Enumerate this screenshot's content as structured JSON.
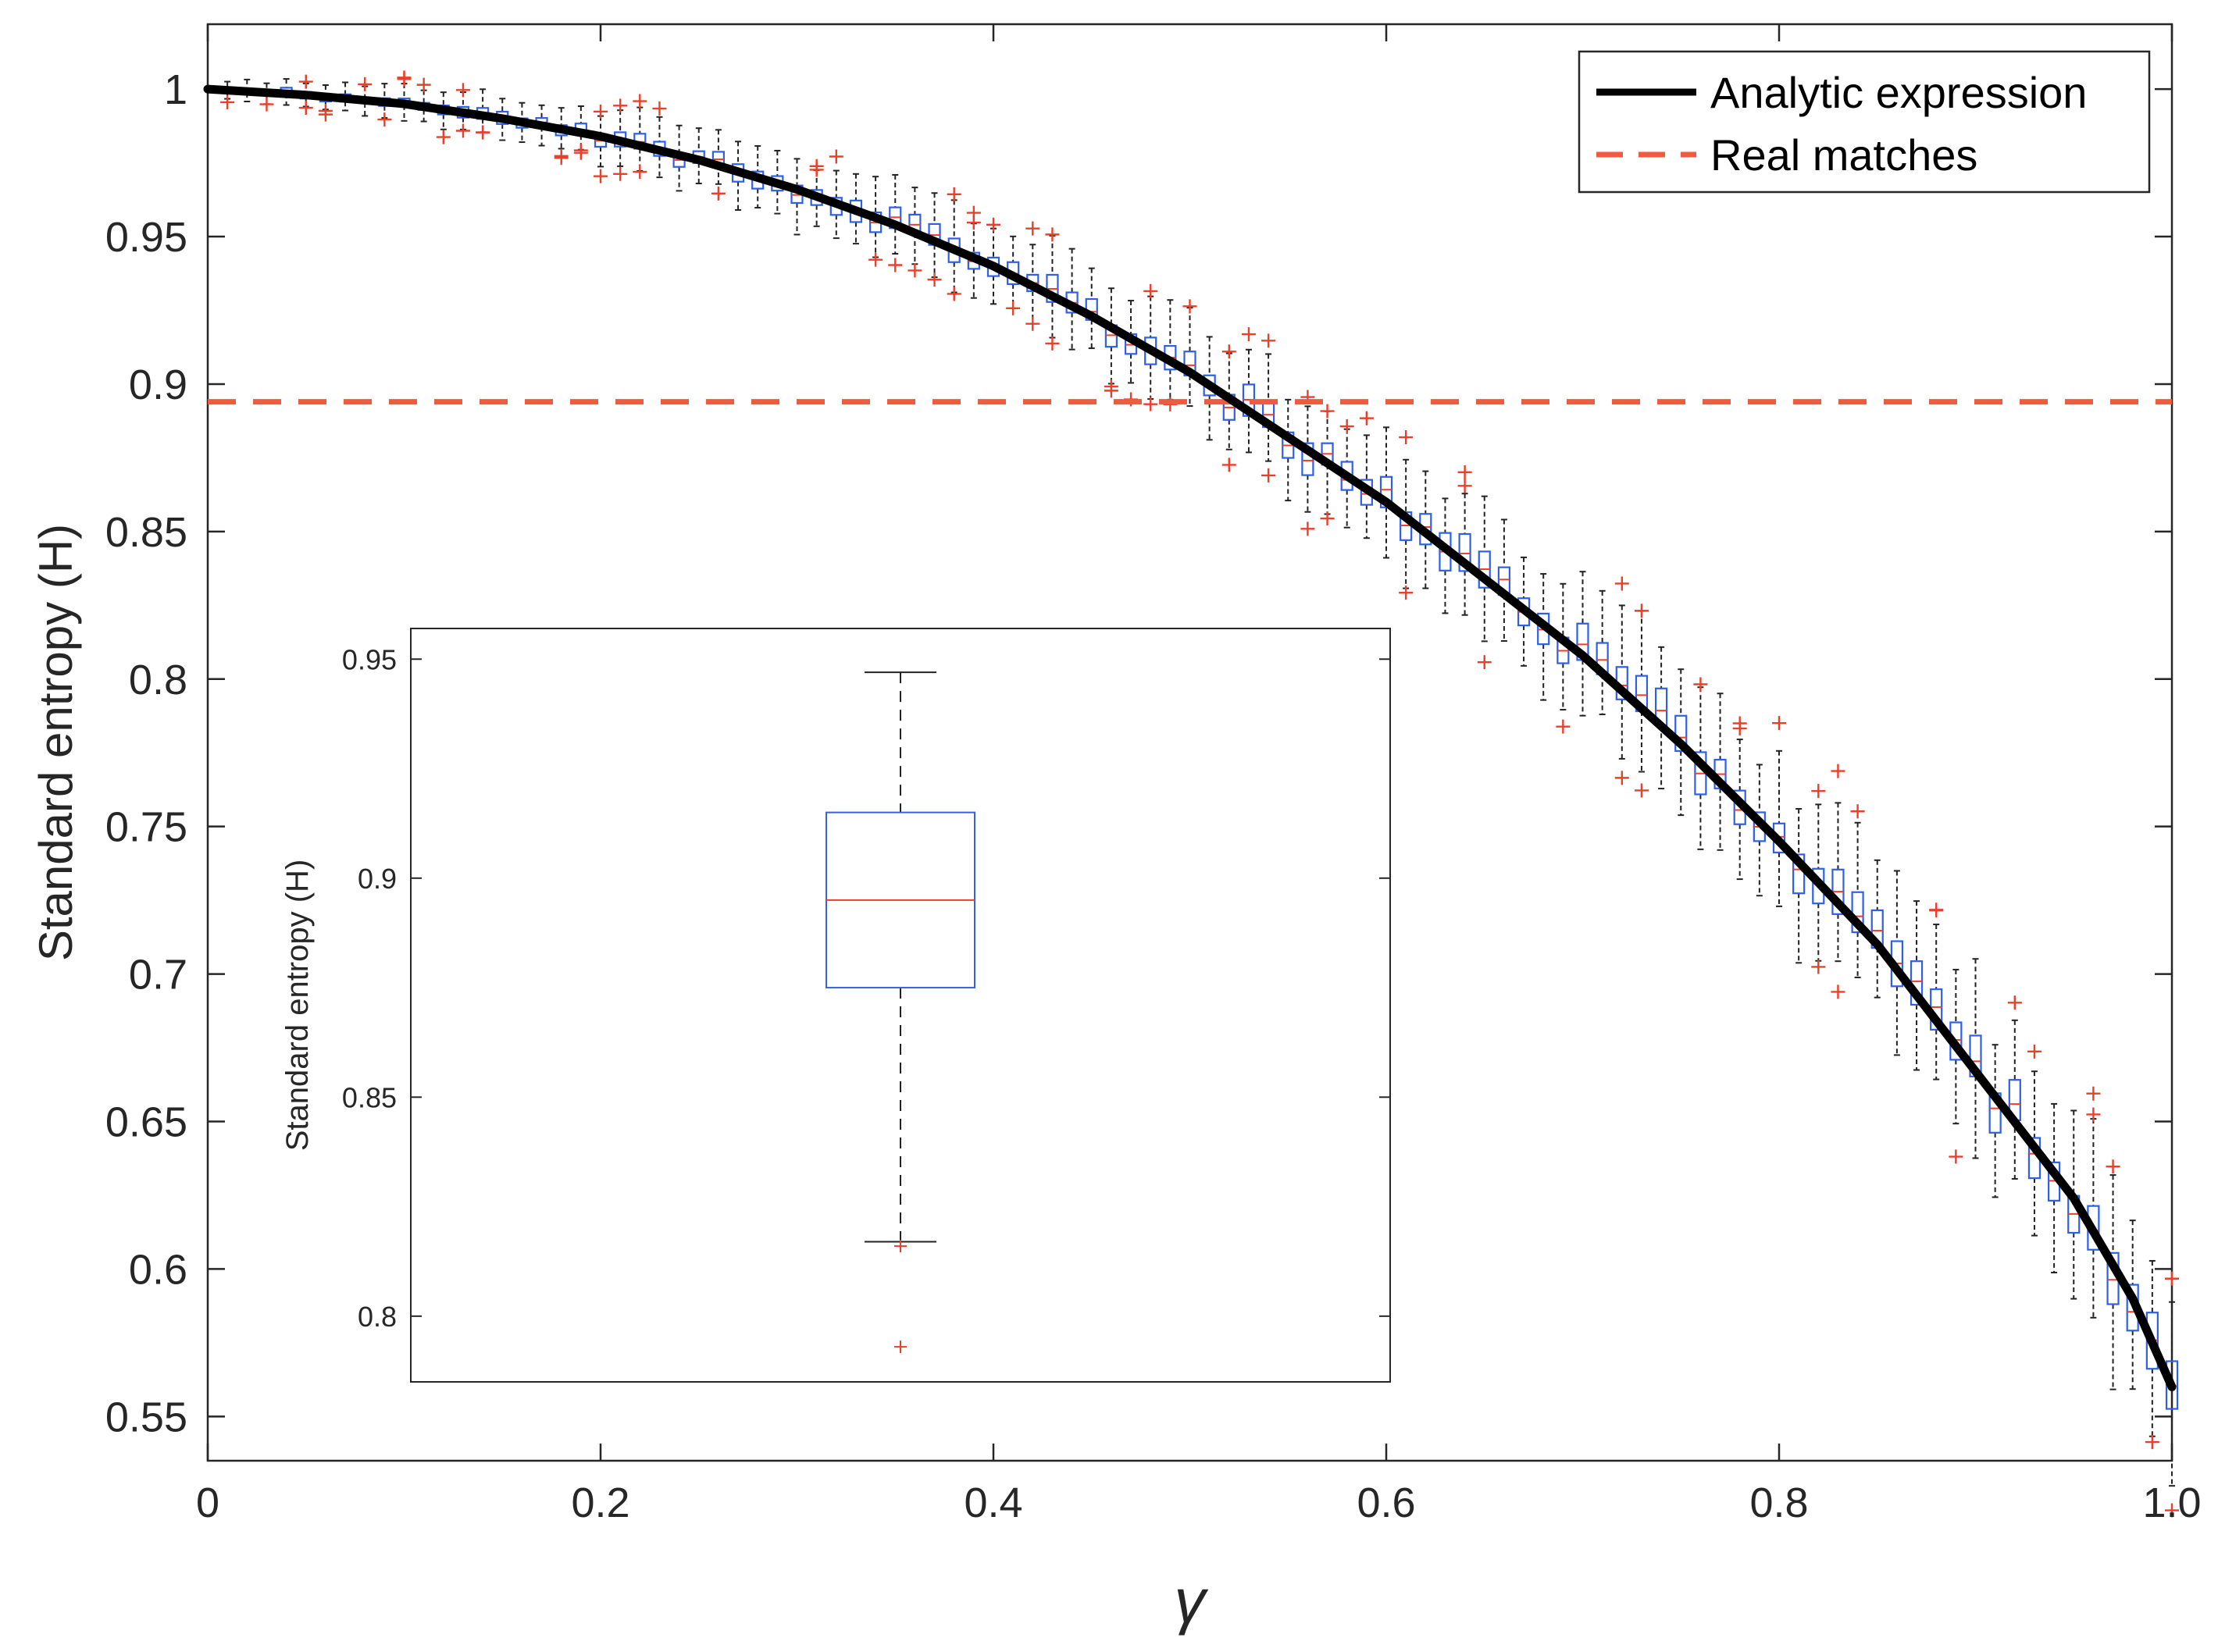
{
  "chart_data": [
    {
      "type": "line",
      "title": "",
      "xlabel": "γ",
      "ylabel": "Standard entropy (H)",
      "xlim": [
        0,
        1.0
      ],
      "ylim": [
        0.535,
        1.022
      ],
      "x_ticks": [
        0,
        0.2,
        0.4,
        0.6,
        0.8,
        1.0
      ],
      "x_tick_labels": [
        "0",
        "0.2",
        "0.4",
        "0.6",
        "0.8",
        "1.0"
      ],
      "y_ticks": [
        0.55,
        0.6,
        0.65,
        0.7,
        0.75,
        0.8,
        0.85,
        0.9,
        0.95,
        1
      ],
      "y_tick_labels": [
        "0.55",
        "0.6",
        "0.65",
        "0.7",
        "0.75",
        "0.8",
        "0.85",
        "0.9",
        "0.95",
        "1"
      ],
      "grid": false,
      "legend_position": "top-right",
      "series": [
        {
          "name": "Analytic expression",
          "style": "solid",
          "color": "#000000",
          "x": [
            0,
            0.05,
            0.1,
            0.15,
            0.2,
            0.25,
            0.3,
            0.35,
            0.4,
            0.45,
            0.5,
            0.55,
            0.6,
            0.65,
            0.7,
            0.75,
            0.8,
            0.85,
            0.9,
            0.95,
            0.98,
            1.0
          ],
          "y": [
            1.0,
            0.998,
            0.995,
            0.99,
            0.984,
            0.976,
            0.966,
            0.954,
            0.94,
            0.923,
            0.904,
            0.882,
            0.86,
            0.834,
            0.808,
            0.778,
            0.745,
            0.71,
            0.667,
            0.624,
            0.59,
            0.56
          ]
        },
        {
          "name": "Real matches",
          "style": "dashed",
          "color": "#f05a40",
          "x": [
            0,
            1.0
          ],
          "y": [
            0.894,
            0.894
          ]
        }
      ],
      "boxplots": {
        "description": "boxplots of simulated entropy for each γ",
        "x_start": 0.01,
        "x_step": 0.01,
        "count": 100,
        "box_color": "#2e5fe6",
        "median_color": "#e8402a",
        "outlier_color": "#e8402a"
      }
    },
    {
      "type": "boxplot",
      "position": "inset",
      "ylabel": "Standard entropy (H)",
      "ylim": [
        0.785,
        0.957
      ],
      "y_ticks": [
        0.8,
        0.85,
        0.9,
        0.95
      ],
      "y_tick_labels": [
        "0.8",
        "0.85",
        "0.9",
        "0.95"
      ],
      "box": {
        "median": 0.895,
        "q1": 0.875,
        "q3": 0.915,
        "whisker_low": 0.817,
        "whisker_high": 0.947,
        "outliers": [
          0.816,
          0.793
        ]
      }
    }
  ]
}
